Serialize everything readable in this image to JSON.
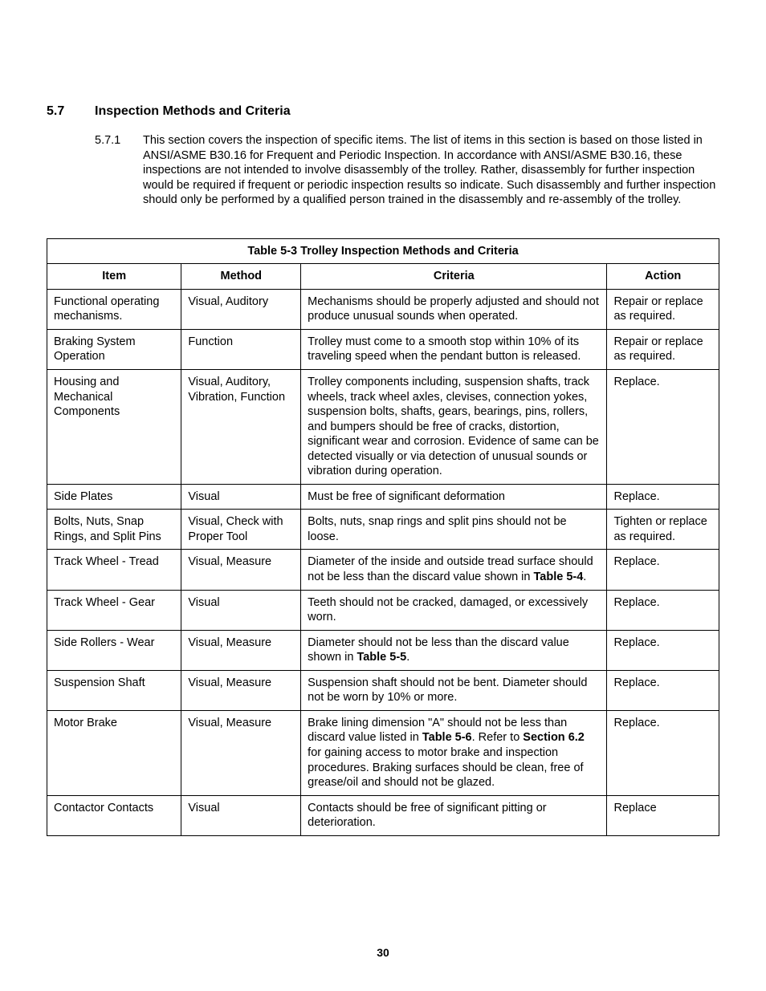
{
  "section": {
    "number": "5.7",
    "title": "Inspection Methods and Criteria",
    "sub_number": "5.7.1",
    "sub_text": "This section covers the inspection of specific items.  The list of items in this section is based on those listed in ANSI/ASME B30.16 for Frequent and Periodic Inspection.  In accordance with ANSI/ASME B30.16, these inspections are not intended to involve disassembly of the trolley.  Rather, disassembly for further inspection would be required if frequent or periodic inspection results so indicate.  Such disassembly and further inspection should only be performed by a qualified person trained in the disassembly and re-assembly of the trolley."
  },
  "table": {
    "title": "Table 5-3  Trolley Inspection Methods and Criteria",
    "headers": {
      "item": "Item",
      "method": "Method",
      "criteria": "Criteria",
      "action": "Action"
    },
    "rows": [
      {
        "item": "Functional operating mechanisms.",
        "method": "Visual, Auditory",
        "criteria": "Mechanisms should be properly adjusted and should not produce unusual sounds when operated.",
        "action": "Repair or replace as required."
      },
      {
        "item": "Braking System Operation",
        "method": "Function",
        "criteria": "Trolley must come to a smooth stop within 10% of its traveling speed when the pendant button is released.",
        "action": "Repair or replace as required."
      },
      {
        "item": "Housing and Mechanical Components",
        "method": "Visual, Auditory, Vibration, Function",
        "criteria": "Trolley components including, suspension shafts, track wheels, track wheel axles, clevises, connection yokes, suspension bolts, shafts, gears, bearings, pins, rollers, and bumpers should be free of cracks, distortion, significant wear and corrosion.  Evidence of same can be detected visually or via detection of unusual sounds or vibration during operation.",
        "action": "Replace."
      },
      {
        "item": "Side Plates",
        "method": "Visual",
        "criteria": "Must be free of significant deformation",
        "action": "Replace."
      },
      {
        "item": "Bolts, Nuts, Snap Rings, and Split Pins",
        "method": "Visual, Check with Proper Tool",
        "criteria": "Bolts, nuts, snap rings and split pins should not be loose.",
        "action": "Tighten or replace as required."
      },
      {
        "item": "Track Wheel - Tread",
        "method": "Visual, Measure",
        "criteria_pre": "Diameter of the inside and outside tread surface should not be less than the discard value shown in ",
        "criteria_bold": "Table 5-4",
        "criteria_post": ".",
        "action": "Replace."
      },
      {
        "item": "Track Wheel - Gear",
        "method": "Visual",
        "criteria": "Teeth should not be cracked, damaged, or excessively worn.",
        "action": "Replace."
      },
      {
        "item": "Side Rollers - Wear",
        "method": "Visual, Measure",
        "criteria_pre": "Diameter should not be less than the discard value shown in ",
        "criteria_bold": "Table 5-5",
        "criteria_post": ".",
        "action": "Replace."
      },
      {
        "item": "Suspension Shaft",
        "method": "Visual, Measure",
        "criteria": "Suspension shaft should not be bent.  Diameter should not be worn by 10% or more.",
        "action": "Replace."
      },
      {
        "item": "Motor Brake",
        "method": "Visual, Measure",
        "criteria_pre": "Brake lining dimension \"A\" should not be less than discard value listed in ",
        "criteria_bold": "Table 5-6",
        "criteria_mid": ".  Refer to ",
        "criteria_bold2": "Section 6.2",
        "criteria_post": " for gaining access to motor brake and inspection procedures.  Braking surfaces should be clean, free of grease/oil and should not be glazed.",
        "action": "Replace."
      },
      {
        "item": "Contactor Contacts",
        "method": "Visual",
        "criteria": "Contacts should be free of significant pitting or deterioration.",
        "action": "Replace"
      }
    ]
  },
  "page_number": "30"
}
